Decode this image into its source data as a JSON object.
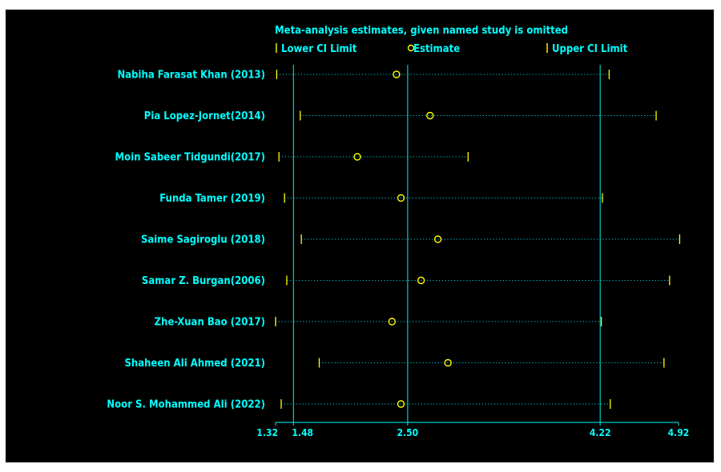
{
  "colors": {
    "background": "#000000",
    "text": "#00ffff",
    "marker": "#ffff00",
    "reference_line": "#00cccc",
    "dotted_line": "#00cccc"
  },
  "chart_data": {
    "type": "forest-sensitivity",
    "title": "Meta-analysis estimates, given named study is omitted",
    "legend": [
      {
        "key": "lower",
        "label": "Lower CI Limit",
        "icon": "tick-icon"
      },
      {
        "key": "estimate",
        "label": "Estimate",
        "icon": "circle-icon"
      },
      {
        "key": "upper",
        "label": "Upper CI Limit",
        "icon": "tick-icon"
      }
    ],
    "legend_position": "top",
    "xlim": [
      1.32,
      4.92
    ],
    "ticks": [
      {
        "value": 1.32,
        "label": "1.32"
      },
      {
        "value": 1.48,
        "label": "1.48"
      },
      {
        "value": 2.5,
        "label": "2.50"
      },
      {
        "value": 4.22,
        "label": "4.22"
      },
      {
        "value": 4.92,
        "label": "4.92"
      }
    ],
    "reference_lines": [
      1.48,
      2.5,
      4.22
    ],
    "studies": [
      {
        "name": "Nabiha Farasat Khan (2013)",
        "lower": 1.33,
        "estimate": 2.4,
        "upper": 4.3
      },
      {
        "name": "Pia Lopez-Jornet(2014)",
        "lower": 1.54,
        "estimate": 2.7,
        "upper": 4.72
      },
      {
        "name": "Moin Sabeer Tidgundi(2017)",
        "lower": 1.35,
        "estimate": 2.05,
        "upper": 3.04
      },
      {
        "name": "Funda Tamer (2019)",
        "lower": 1.4,
        "estimate": 2.44,
        "upper": 4.24
      },
      {
        "name": "Saime Sagiroglu (2018)",
        "lower": 1.55,
        "estimate": 2.77,
        "upper": 4.93
      },
      {
        "name": "Samar Z. Burgan(2006)",
        "lower": 1.42,
        "estimate": 2.62,
        "upper": 4.84
      },
      {
        "name": "Zhe-Xuan Bao (2017)",
        "lower": 1.32,
        "estimate": 2.36,
        "upper": 4.23
      },
      {
        "name": "Shaheen Ali Ahmed (2021)",
        "lower": 1.71,
        "estimate": 2.86,
        "upper": 4.79
      },
      {
        "name": "Noor S. Mohammed Ali (2022)",
        "lower": 1.37,
        "estimate": 2.44,
        "upper": 4.31
      }
    ]
  }
}
